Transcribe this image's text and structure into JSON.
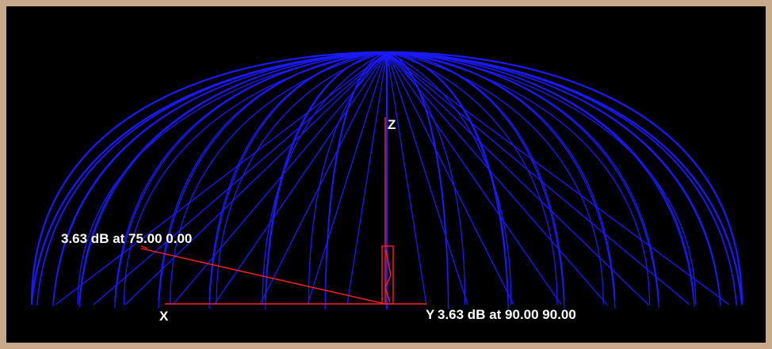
{
  "labels": {
    "z_axis": "Z",
    "x_axis": "X",
    "y_axis": "Y",
    "marker_left": "3.63 dB at 75.00 0.00",
    "marker_right": "3.63 dB at 90.00 90.00"
  },
  "colors": {
    "background": "#000000",
    "frame": "#c9a98c",
    "wireframe": "#1a1aff",
    "axes": "#ff2020",
    "text": "#ffffff"
  }
}
